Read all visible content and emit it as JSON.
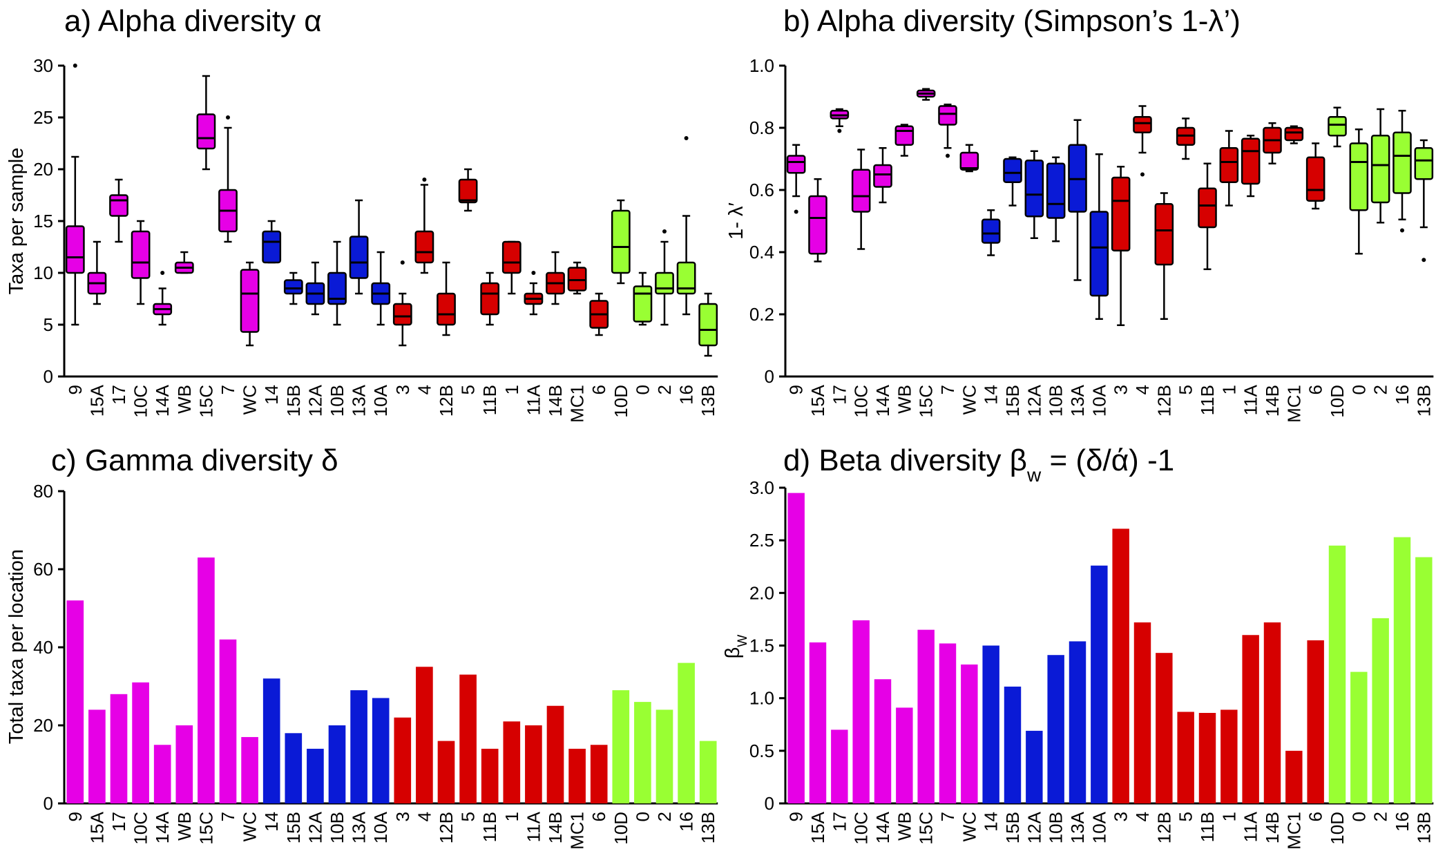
{
  "colors": {
    "magenta": "#e600e6",
    "blue": "#0a1ad6",
    "red": "#d60000",
    "green": "#99ff33"
  },
  "chart_data": [
    {
      "id": "a",
      "type": "box",
      "title": "a) Alpha diversity α",
      "ylabel": "Taxa per sample",
      "ylim": [
        0,
        30
      ],
      "yticks": [
        "0",
        "5",
        "10",
        "15",
        "20",
        "25",
        "30"
      ],
      "categories": [
        "9",
        "15A",
        "17",
        "10C",
        "14A",
        "WB",
        "15C",
        "7",
        "WC",
        "14",
        "15B",
        "12A",
        "10B",
        "13A",
        "10A",
        "3",
        "4",
        "12B",
        "5",
        "11B",
        "1",
        "11A",
        "14B",
        "MC1",
        "6",
        "10D",
        "0",
        "2",
        "16",
        "13B"
      ],
      "groups": [
        "magenta",
        "magenta",
        "magenta",
        "magenta",
        "magenta",
        "magenta",
        "magenta",
        "magenta",
        "magenta",
        "blue",
        "blue",
        "blue",
        "blue",
        "blue",
        "blue",
        "red",
        "red",
        "red",
        "red",
        "red",
        "red",
        "red",
        "red",
        "red",
        "red",
        "green",
        "green",
        "green",
        "green",
        "green"
      ],
      "boxes": [
        {
          "min": 5,
          "q1": 10,
          "median": 11.5,
          "q3": 14.5,
          "max": 21.2,
          "outliers": [
            30
          ]
        },
        {
          "min": 7,
          "q1": 8,
          "median": 9,
          "q3": 10,
          "max": 13,
          "outliers": []
        },
        {
          "min": 13,
          "q1": 15.5,
          "median": 17,
          "q3": 17.5,
          "max": 19,
          "outliers": []
        },
        {
          "min": 7,
          "q1": 9.5,
          "median": 11,
          "q3": 14,
          "max": 15,
          "outliers": []
        },
        {
          "min": 5,
          "q1": 6,
          "median": 6.5,
          "q3": 7,
          "max": 8.5,
          "outliers": [
            10
          ]
        },
        {
          "min": 10,
          "q1": 10,
          "median": 10.5,
          "q3": 11,
          "max": 12,
          "outliers": []
        },
        {
          "min": 20,
          "q1": 22,
          "median": 23,
          "q3": 25.3,
          "max": 29,
          "outliers": []
        },
        {
          "min": 13,
          "q1": 14,
          "median": 16,
          "q3": 18,
          "max": 24,
          "outliers": [
            25
          ]
        },
        {
          "min": 3,
          "q1": 4.3,
          "median": 8,
          "q3": 10.3,
          "max": 11,
          "outliers": []
        },
        {
          "min": 11,
          "q1": 11,
          "median": 13,
          "q3": 14,
          "max": 15,
          "outliers": []
        },
        {
          "min": 7,
          "q1": 8,
          "median": 8.5,
          "q3": 9.3,
          "max": 10,
          "outliers": []
        },
        {
          "min": 6,
          "q1": 7,
          "median": 8,
          "q3": 9,
          "max": 11,
          "outliers": []
        },
        {
          "min": 5,
          "q1": 7,
          "median": 7.5,
          "q3": 10,
          "max": 13,
          "outliers": []
        },
        {
          "min": 8,
          "q1": 9.5,
          "median": 11,
          "q3": 13.5,
          "max": 17,
          "outliers": []
        },
        {
          "min": 5,
          "q1": 7,
          "median": 8,
          "q3": 9,
          "max": 12,
          "outliers": []
        },
        {
          "min": 3,
          "q1": 5,
          "median": 5.8,
          "q3": 7,
          "max": 8,
          "outliers": [
            11
          ]
        },
        {
          "min": 10,
          "q1": 11,
          "median": 12,
          "q3": 14,
          "max": 18.5,
          "outliers": [
            19
          ]
        },
        {
          "min": 4,
          "q1": 5,
          "median": 6,
          "q3": 8,
          "max": 11,
          "outliers": []
        },
        {
          "min": 16,
          "q1": 16.8,
          "median": 17,
          "q3": 19,
          "max": 20,
          "outliers": []
        },
        {
          "min": 5,
          "q1": 6,
          "median": 8,
          "q3": 9,
          "max": 10,
          "outliers": []
        },
        {
          "min": 8,
          "q1": 10,
          "median": 11,
          "q3": 13,
          "max": 13,
          "outliers": []
        },
        {
          "min": 6,
          "q1": 7,
          "median": 7.5,
          "q3": 8,
          "max": 9,
          "outliers": [
            10
          ]
        },
        {
          "min": 7,
          "q1": 8,
          "median": 9,
          "q3": 10,
          "max": 12,
          "outliers": []
        },
        {
          "min": 8,
          "q1": 8.3,
          "median": 9.3,
          "q3": 10.5,
          "max": 11,
          "outliers": []
        },
        {
          "min": 4,
          "q1": 4.7,
          "median": 6,
          "q3": 7.3,
          "max": 8,
          "outliers": []
        },
        {
          "min": 9,
          "q1": 10,
          "median": 12.5,
          "q3": 16,
          "max": 17,
          "outliers": []
        },
        {
          "min": 5,
          "q1": 5.3,
          "median": 8,
          "q3": 8.7,
          "max": 10,
          "outliers": []
        },
        {
          "min": 5,
          "q1": 8,
          "median": 8.5,
          "q3": 10,
          "max": 13,
          "outliers": [
            14
          ]
        },
        {
          "min": 6,
          "q1": 8,
          "median": 8.5,
          "q3": 11,
          "max": 15.5,
          "outliers": [
            23
          ]
        },
        {
          "min": 2,
          "q1": 3,
          "median": 4.5,
          "q3": 7,
          "max": 8,
          "outliers": []
        }
      ]
    },
    {
      "id": "b",
      "type": "box",
      "title": "b) Alpha diversity (Simpson’s 1-λ’)",
      "ylabel": "1- λ′",
      "ylim": [
        0,
        1
      ],
      "yticks": [
        "0",
        "0.2",
        "0.4",
        "0.6",
        "0.8",
        "1.0"
      ],
      "categories": [
        "9",
        "15A",
        "17",
        "10C",
        "14A",
        "WB",
        "15C",
        "7",
        "WC",
        "14",
        "15B",
        "12A",
        "10B",
        "13A",
        "10A",
        "3",
        "4",
        "12B",
        "5",
        "11B",
        "1",
        "11A",
        "14B",
        "MC1",
        "6",
        "10D",
        "0",
        "2",
        "16",
        "13B"
      ],
      "groups": [
        "magenta",
        "magenta",
        "magenta",
        "magenta",
        "magenta",
        "magenta",
        "magenta",
        "magenta",
        "magenta",
        "blue",
        "blue",
        "blue",
        "blue",
        "blue",
        "blue",
        "red",
        "red",
        "red",
        "red",
        "red",
        "red",
        "red",
        "red",
        "red",
        "red",
        "green",
        "green",
        "green",
        "green",
        "green"
      ],
      "boxes": [
        {
          "min": 0.58,
          "q1": 0.655,
          "median": 0.69,
          "q3": 0.71,
          "max": 0.745,
          "outliers": [
            0.53
          ]
        },
        {
          "min": 0.37,
          "q1": 0.395,
          "median": 0.51,
          "q3": 0.58,
          "max": 0.635,
          "outliers": []
        },
        {
          "min": 0.805,
          "q1": 0.83,
          "median": 0.84,
          "q3": 0.855,
          "max": 0.86,
          "outliers": [
            0.79
          ]
        },
        {
          "min": 0.41,
          "q1": 0.53,
          "median": 0.58,
          "q3": 0.665,
          "max": 0.73,
          "outliers": []
        },
        {
          "min": 0.56,
          "q1": 0.61,
          "median": 0.65,
          "q3": 0.68,
          "max": 0.735,
          "outliers": []
        },
        {
          "min": 0.71,
          "q1": 0.745,
          "median": 0.79,
          "q3": 0.805,
          "max": 0.81,
          "outliers": []
        },
        {
          "min": 0.89,
          "q1": 0.9,
          "median": 0.91,
          "q3": 0.92,
          "max": 0.925,
          "outliers": []
        },
        {
          "min": 0.735,
          "q1": 0.81,
          "median": 0.845,
          "q3": 0.87,
          "max": 0.875,
          "outliers": [
            0.71
          ]
        },
        {
          "min": 0.66,
          "q1": 0.665,
          "median": 0.67,
          "q3": 0.72,
          "max": 0.745,
          "outliers": []
        },
        {
          "min": 0.39,
          "q1": 0.43,
          "median": 0.46,
          "q3": 0.505,
          "max": 0.535,
          "outliers": []
        },
        {
          "min": 0.55,
          "q1": 0.625,
          "median": 0.655,
          "q3": 0.7,
          "max": 0.705,
          "outliers": []
        },
        {
          "min": 0.445,
          "q1": 0.515,
          "median": 0.585,
          "q3": 0.695,
          "max": 0.725,
          "outliers": []
        },
        {
          "min": 0.435,
          "q1": 0.51,
          "median": 0.555,
          "q3": 0.685,
          "max": 0.705,
          "outliers": []
        },
        {
          "min": 0.31,
          "q1": 0.53,
          "median": 0.635,
          "q3": 0.745,
          "max": 0.825,
          "outliers": []
        },
        {
          "min": 0.185,
          "q1": 0.26,
          "median": 0.415,
          "q3": 0.53,
          "max": 0.715,
          "outliers": []
        },
        {
          "min": 0.165,
          "q1": 0.405,
          "median": 0.565,
          "q3": 0.64,
          "max": 0.675,
          "outliers": []
        },
        {
          "min": 0.72,
          "q1": 0.785,
          "median": 0.815,
          "q3": 0.835,
          "max": 0.87,
          "outliers": [
            0.65
          ]
        },
        {
          "min": 0.185,
          "q1": 0.36,
          "median": 0.47,
          "q3": 0.555,
          "max": 0.59,
          "outliers": []
        },
        {
          "min": 0.7,
          "q1": 0.745,
          "median": 0.775,
          "q3": 0.8,
          "max": 0.83,
          "outliers": []
        },
        {
          "min": 0.345,
          "q1": 0.48,
          "median": 0.55,
          "q3": 0.605,
          "max": 0.685,
          "outliers": []
        },
        {
          "min": 0.55,
          "q1": 0.625,
          "median": 0.69,
          "q3": 0.735,
          "max": 0.79,
          "outliers": []
        },
        {
          "min": 0.58,
          "q1": 0.62,
          "median": 0.725,
          "q3": 0.765,
          "max": 0.775,
          "outliers": []
        },
        {
          "min": 0.685,
          "q1": 0.72,
          "median": 0.76,
          "q3": 0.8,
          "max": 0.815,
          "outliers": []
        },
        {
          "min": 0.75,
          "q1": 0.76,
          "median": 0.785,
          "q3": 0.8,
          "max": 0.805,
          "outliers": []
        },
        {
          "min": 0.54,
          "q1": 0.565,
          "median": 0.6,
          "q3": 0.705,
          "max": 0.75,
          "outliers": []
        },
        {
          "min": 0.74,
          "q1": 0.775,
          "median": 0.81,
          "q3": 0.835,
          "max": 0.865,
          "outliers": []
        },
        {
          "min": 0.395,
          "q1": 0.535,
          "median": 0.69,
          "q3": 0.75,
          "max": 0.795,
          "outliers": []
        },
        {
          "min": 0.495,
          "q1": 0.56,
          "median": 0.68,
          "q3": 0.775,
          "max": 0.86,
          "outliers": []
        },
        {
          "min": 0.505,
          "q1": 0.59,
          "median": 0.71,
          "q3": 0.785,
          "max": 0.855,
          "outliers": [
            0.47
          ]
        },
        {
          "min": 0.48,
          "q1": 0.635,
          "median": 0.695,
          "q3": 0.735,
          "max": 0.76,
          "outliers": [
            0.375
          ]
        }
      ]
    },
    {
      "id": "c",
      "type": "bar",
      "title": "c) Gamma diversity δ",
      "ylabel": "Total taxa per location",
      "ylim": [
        0,
        80
      ],
      "yticks": [
        "0",
        "20",
        "40",
        "60",
        "80"
      ],
      "categories": [
        "9",
        "15A",
        "17",
        "10C",
        "14A",
        "WB",
        "15C",
        "7",
        "WC",
        "14",
        "15B",
        "12A",
        "10B",
        "13A",
        "10A",
        "3",
        "4",
        "12B",
        "5",
        "11B",
        "1",
        "11A",
        "14B",
        "MC1",
        "6",
        "10D",
        "0",
        "2",
        "16",
        "13B"
      ],
      "groups": [
        "magenta",
        "magenta",
        "magenta",
        "magenta",
        "magenta",
        "magenta",
        "magenta",
        "magenta",
        "magenta",
        "blue",
        "blue",
        "blue",
        "blue",
        "blue",
        "blue",
        "red",
        "red",
        "red",
        "red",
        "red",
        "red",
        "red",
        "red",
        "red",
        "red",
        "green",
        "green",
        "green",
        "green",
        "green"
      ],
      "values": [
        52,
        24,
        28,
        31,
        15,
        20,
        63,
        42,
        17,
        32,
        18,
        14,
        20,
        29,
        27,
        22,
        35,
        16,
        33,
        14,
        21,
        20,
        25,
        14,
        15,
        29,
        26,
        24,
        36,
        16
      ]
    },
    {
      "id": "d",
      "type": "bar",
      "title": "d) Beta diversity β",
      "title_sub": "w",
      "title_rest": " = (δ/ά) -1",
      "ylabel": "β",
      "ylabel_sub": "W",
      "ylim": [
        0,
        3
      ],
      "yticks": [
        "0",
        "0.5",
        "1.0",
        "1.5",
        "2.0",
        "2.5",
        "3.0"
      ],
      "categories": [
        "9",
        "15A",
        "17",
        "10C",
        "14A",
        "WB",
        "15C",
        "7",
        "WC",
        "14",
        "15B",
        "12A",
        "10B",
        "13A",
        "10A",
        "3",
        "4",
        "12B",
        "5",
        "11B",
        "1",
        "11A",
        "14B",
        "MC1",
        "6",
        "10D",
        "0",
        "2",
        "16",
        "13B"
      ],
      "groups": [
        "magenta",
        "magenta",
        "magenta",
        "magenta",
        "magenta",
        "magenta",
        "magenta",
        "magenta",
        "magenta",
        "blue",
        "blue",
        "blue",
        "blue",
        "blue",
        "blue",
        "red",
        "red",
        "red",
        "red",
        "red",
        "red",
        "red",
        "red",
        "red",
        "red",
        "green",
        "green",
        "green",
        "green",
        "green"
      ],
      "values": [
        2.95,
        1.53,
        0.7,
        1.74,
        1.18,
        0.91,
        1.65,
        1.52,
        1.32,
        1.5,
        1.11,
        0.69,
        1.41,
        1.54,
        2.26,
        2.61,
        1.72,
        1.43,
        0.87,
        0.86,
        0.89,
        1.6,
        1.72,
        0.5,
        1.55,
        2.45,
        1.25,
        1.76,
        2.53,
        2.34
      ]
    }
  ]
}
